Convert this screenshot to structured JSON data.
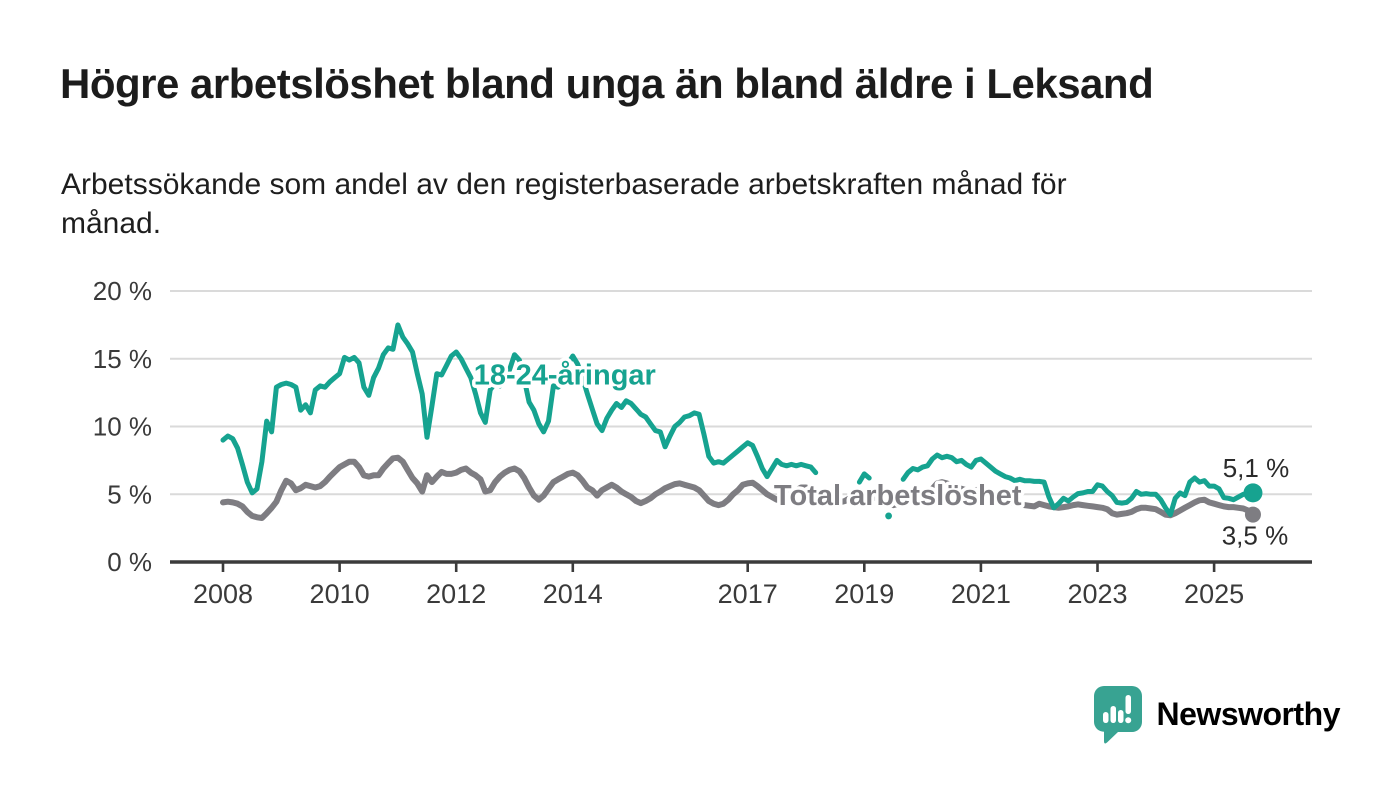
{
  "header": {
    "title": "Högre arbetslöshet bland unga än bland äldre i Leksand",
    "subtitle_full": "Arbetssökande som andel av den registerbaserade arbetskraften månad för månad.",
    "subtitle_lines": [
      "Arbetssökande som andel av den registerbaserade arbetskraften månad för",
      "månad."
    ]
  },
  "colors": {
    "young_line": "#16a390",
    "total_line": "#7e7d82",
    "grid": "#dadada",
    "axis": "#3b3b3b",
    "axis_text": "#3a3a3a",
    "value_label_text": "#2b2b2b",
    "brand_teal": "#38a392",
    "background": "#ffffff"
  },
  "chart_data": {
    "type": "line",
    "x_unit": "month",
    "x_start_year": 2008,
    "x_end": "2025-09",
    "ylim": [
      0,
      20
    ],
    "grid": "horizontal-only",
    "legend_position": "inline-labels",
    "y_ticks": [
      {
        "value": 20,
        "label": "20 %"
      },
      {
        "value": 15,
        "label": "15 %"
      },
      {
        "value": 10,
        "label": "10 %"
      },
      {
        "value": 5,
        "label": "5 %"
      },
      {
        "value": 0,
        "label": "0 %"
      }
    ],
    "x_ticks": [
      {
        "year": 2008,
        "label": "2008"
      },
      {
        "year": 2010,
        "label": "2010"
      },
      {
        "year": 2012,
        "label": "2012"
      },
      {
        "year": 2014,
        "label": "2014"
      },
      {
        "year": 2017,
        "label": "2017"
      },
      {
        "year": 2019,
        "label": "2019"
      },
      {
        "year": 2021,
        "label": "2021"
      },
      {
        "year": 2023,
        "label": "2023"
      },
      {
        "year": 2025,
        "label": "2025"
      }
    ],
    "series": [
      {
        "name": "Total arbetslöshet",
        "color": "#7e7d82",
        "end_value_label": "3,5 %",
        "values": [
          4.4,
          4.45,
          4.4,
          4.3,
          4.1,
          3.7,
          3.4,
          3.3,
          3.25,
          3.6,
          4.0,
          4.45,
          5.3,
          6.0,
          5.8,
          5.3,
          5.45,
          5.7,
          5.6,
          5.5,
          5.6,
          5.9,
          6.3,
          6.65,
          7.0,
          7.2,
          7.4,
          7.4,
          7.0,
          6.4,
          6.3,
          6.4,
          6.4,
          6.9,
          7.3,
          7.65,
          7.7,
          7.4,
          6.8,
          6.2,
          5.8,
          5.2,
          6.4,
          5.9,
          6.3,
          6.65,
          6.5,
          6.5,
          6.6,
          6.8,
          6.9,
          6.6,
          6.4,
          6.1,
          5.2,
          5.3,
          5.9,
          6.3,
          6.6,
          6.8,
          6.9,
          6.7,
          6.2,
          5.5,
          4.9,
          4.6,
          4.9,
          5.4,
          5.9,
          6.1,
          6.3,
          6.5,
          6.6,
          6.4,
          6.0,
          5.5,
          5.3,
          4.9,
          5.3,
          5.5,
          5.7,
          5.5,
          5.2,
          5.0,
          4.8,
          4.5,
          4.35,
          4.5,
          4.7,
          5.0,
          5.2,
          5.45,
          5.6,
          5.75,
          5.8,
          5.7,
          5.6,
          5.5,
          5.3,
          4.9,
          4.5,
          4.3,
          4.2,
          4.3,
          4.6,
          5.0,
          5.3,
          5.7,
          5.8,
          5.85,
          5.6,
          5.3,
          5.0,
          4.8,
          4.6,
          4.7,
          4.9,
          5.1,
          5.3,
          5.5,
          5.5,
          5.4,
          5.2,
          4.9,
          4.6,
          4.4,
          4.3,
          4.4,
          4.5,
          4.7,
          4.9,
          5.0,
          5.1,
          5.0,
          4.8,
          4.6,
          4.4,
          4.3,
          4.2,
          4.3,
          4.4,
          4.5,
          4.6,
          4.7,
          4.9,
          5.0,
          5.4,
          5.8,
          5.9,
          5.8,
          5.6,
          5.5,
          5.4,
          5.3,
          5.2,
          5.3,
          5.4,
          5.3,
          5.1,
          4.9,
          4.7,
          4.5,
          4.4,
          4.3,
          4.25,
          4.2,
          4.15,
          4.1,
          4.3,
          4.2,
          4.1,
          4.05,
          4.0,
          4.05,
          4.1,
          4.2,
          4.25,
          4.2,
          4.15,
          4.1,
          4.05,
          4.0,
          3.9,
          3.6,
          3.5,
          3.55,
          3.6,
          3.7,
          3.9,
          4.0,
          4.0,
          3.95,
          3.9,
          3.7,
          3.5,
          3.45,
          3.6,
          3.8,
          4.0,
          4.2,
          4.4,
          4.55,
          4.6,
          4.4,
          4.3,
          4.2,
          4.1,
          4.05,
          4.05,
          4.0,
          3.95,
          3.8,
          3.5
        ]
      },
      {
        "name": "18-24-åringar",
        "color": "#16a390",
        "end_value_label": "5,1 %",
        "values": [
          9.0,
          9.3,
          9.1,
          8.4,
          7.2,
          5.9,
          5.1,
          5.4,
          7.4,
          10.4,
          9.6,
          12.9,
          13.1,
          13.2,
          13.1,
          12.9,
          11.2,
          11.6,
          11.0,
          12.7,
          13.0,
          12.9,
          13.3,
          13.6,
          13.9,
          15.1,
          14.9,
          15.1,
          14.7,
          12.9,
          12.3,
          13.6,
          14.3,
          15.3,
          15.8,
          15.7,
          17.5,
          16.6,
          16.1,
          15.5,
          13.9,
          12.4,
          9.2,
          11.5,
          13.9,
          13.8,
          14.5,
          15.2,
          15.5,
          15.0,
          14.3,
          13.6,
          12.4,
          11.0,
          10.3,
          12.7,
          13.2,
          13.0,
          13.5,
          14.2,
          15.3,
          14.9,
          13.5,
          11.8,
          11.2,
          10.2,
          9.6,
          10.4,
          13.0,
          12.9,
          13.4,
          14.6,
          15.2,
          14.6,
          13.6,
          12.4,
          11.3,
          10.2,
          9.7,
          10.6,
          11.2,
          11.7,
          11.4,
          11.9,
          11.7,
          11.3,
          10.9,
          10.7,
          10.2,
          9.7,
          9.6,
          8.5,
          9.3,
          10.0,
          10.3,
          10.7,
          10.8,
          11.0,
          10.9,
          9.4,
          7.8,
          7.3,
          7.4,
          7.3,
          7.6,
          7.9,
          8.2,
          8.5,
          8.8,
          8.6,
          7.8,
          6.9,
          6.3,
          6.9,
          7.5,
          7.2,
          7.1,
          7.2,
          7.1,
          7.2,
          7.1,
          7.0,
          6.6,
          null,
          null,
          null,
          null,
          null,
          null,
          null,
          null,
          5.9,
          6.5,
          6.2,
          null,
          null,
          null,
          3.4,
          null,
          null,
          6.1,
          6.6,
          6.9,
          6.8,
          7.0,
          7.1,
          7.6,
          7.9,
          7.7,
          7.8,
          7.7,
          7.4,
          7.5,
          7.2,
          7.0,
          7.5,
          7.6,
          7.3,
          7.0,
          6.7,
          6.5,
          6.3,
          6.2,
          6.0,
          6.1,
          6.0,
          6.0,
          5.95,
          5.95,
          5.9,
          4.8,
          4.0,
          4.3,
          4.7,
          4.5,
          4.8,
          5.05,
          5.1,
          5.2,
          5.2,
          5.7,
          5.6,
          5.2,
          4.9,
          4.4,
          4.35,
          4.4,
          4.7,
          5.2,
          5.0,
          5.05,
          5.0,
          5.0,
          4.6,
          4.0,
          3.5,
          4.7,
          5.1,
          4.9,
          5.9,
          6.2,
          5.9,
          6.0,
          5.6,
          5.6,
          5.4,
          4.75,
          4.7,
          4.6,
          4.8,
          5.0,
          5.0,
          5.1
        ]
      }
    ],
    "annotations": {
      "series_label_young": {
        "text": "18-24-åringar",
        "x_year": 2012.3,
        "y_pct": 13.85
      },
      "series_label_total": {
        "text": "Total arbetslöshet",
        "x_year": 2017.45,
        "y_pct": 4.95
      },
      "end_label_young": "5,1 %",
      "end_label_total": "3,5 %"
    }
  },
  "branding": {
    "logo_text": "Newsworthy",
    "logo_icon": "speech-bubble-bar-chart-exclamation"
  }
}
